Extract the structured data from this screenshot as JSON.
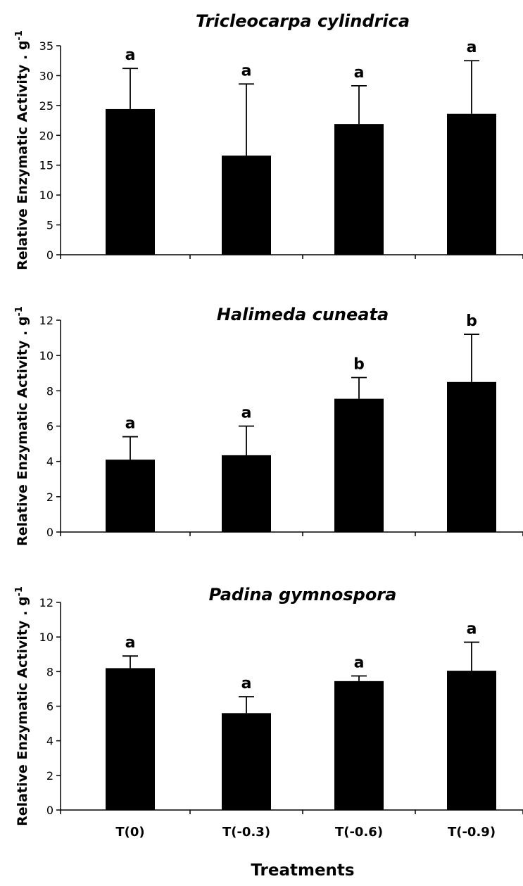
{
  "figure": {
    "xlabel": "Treatments",
    "categories": [
      "T(0)",
      "T(-0.3)",
      "T(-0.6)",
      "T(-0.9)"
    ]
  },
  "chart_data": [
    {
      "type": "bar",
      "title": "Tricleocarpa cylindrica",
      "ylabel": "Relative Enzymatic Activity . g",
      "ylabel_sup": "-1",
      "xlabel": "",
      "categories": [
        "T(0)",
        "T(-0.3)",
        "T(-0.6)",
        "T(-0.9)"
      ],
      "values": [
        24.4,
        16.6,
        21.9,
        23.6
      ],
      "errors": [
        6.8,
        12.0,
        6.4,
        8.9
      ],
      "significance_letters": [
        "a",
        "a",
        "a",
        "a"
      ],
      "ylim": [
        0,
        35
      ],
      "yticks": [
        0,
        5,
        10,
        15,
        20,
        25,
        30,
        35
      ],
      "bar_color": "#000000",
      "grid": false,
      "show_category_labels": false
    },
    {
      "type": "bar",
      "title": "Halimeda cuneata",
      "ylabel": "Relative Enzymatic Activity . g",
      "ylabel_sup": "-1",
      "xlabel": "",
      "categories": [
        "T(0)",
        "T(-0.3)",
        "T(-0.6)",
        "T(-0.9)"
      ],
      "values": [
        4.1,
        4.35,
        7.55,
        8.5
      ],
      "errors": [
        1.3,
        1.65,
        1.2,
        2.7
      ],
      "significance_letters": [
        "a",
        "a",
        "b",
        "b"
      ],
      "ylim": [
        0,
        12
      ],
      "yticks": [
        0,
        2,
        4,
        6,
        8,
        10,
        12
      ],
      "bar_color": "#000000",
      "grid": false,
      "show_category_labels": false
    },
    {
      "type": "bar",
      "title": "Padina gymnospora",
      "ylabel": "Relative Enzymatic Activity . g",
      "ylabel_sup": "-1",
      "xlabel": "Treatments",
      "categories": [
        "T(0)",
        "T(-0.3)",
        "T(-0.6)",
        "T(-0.9)"
      ],
      "values": [
        8.2,
        5.6,
        7.45,
        8.05
      ],
      "errors": [
        0.7,
        0.95,
        0.3,
        1.65
      ],
      "significance_letters": [
        "a",
        "a",
        "a",
        "a"
      ],
      "ylim": [
        0,
        12
      ],
      "yticks": [
        0,
        2,
        4,
        6,
        8,
        10,
        12
      ],
      "bar_color": "#000000",
      "grid": false,
      "show_category_labels": true
    }
  ]
}
